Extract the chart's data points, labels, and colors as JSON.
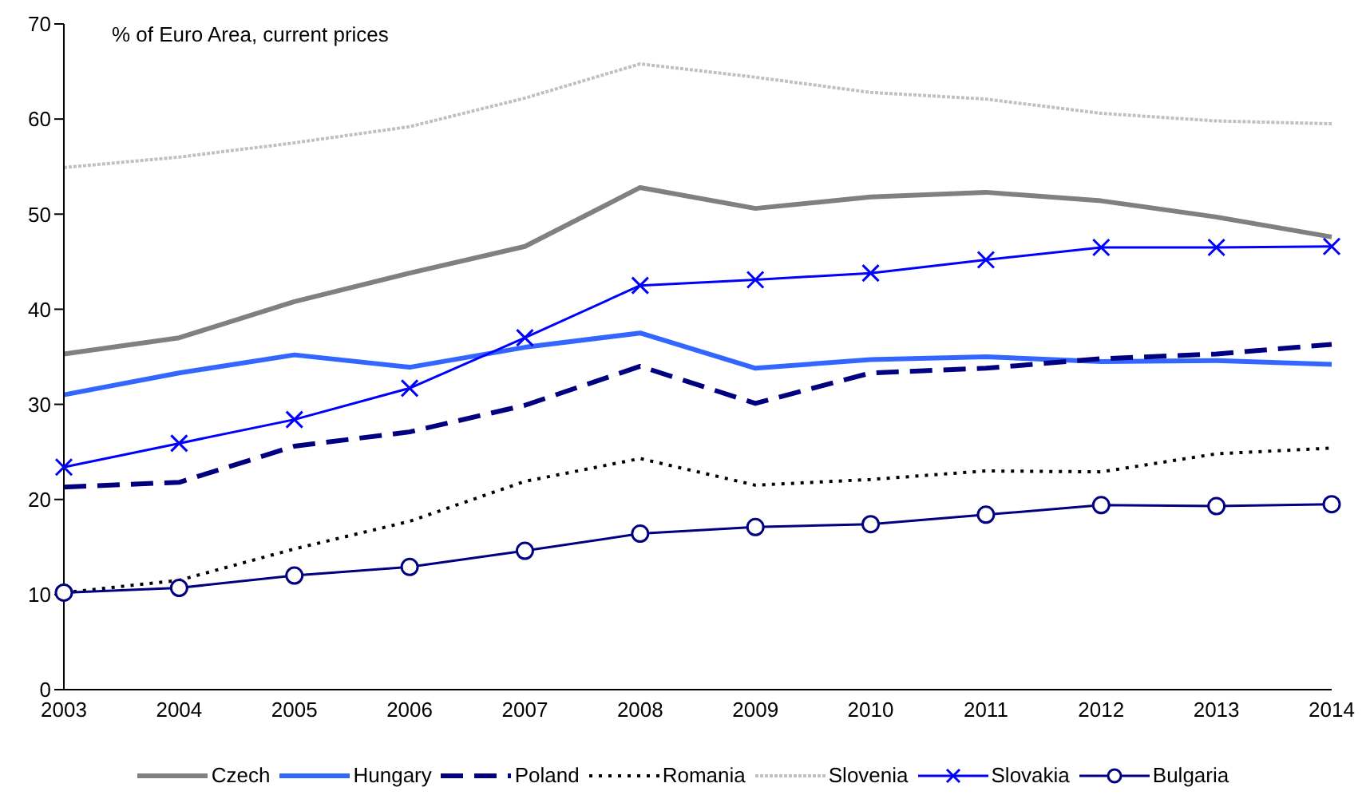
{
  "chart_data": {
    "type": "line",
    "title": "% of Euro Area, current prices",
    "categories": [
      "2003",
      "2004",
      "2005",
      "2006",
      "2007",
      "2008",
      "2009",
      "2010",
      "2011",
      "2012",
      "2013",
      "2014"
    ],
    "series": [
      {
        "name": "Czech",
        "color": "#808080",
        "line_style": "solid",
        "marker": "none",
        "values": [
          35.3,
          37,
          40.8,
          43.8,
          46.6,
          52.8,
          50.6,
          51.8,
          52.3,
          51.4,
          49.7,
          47.6
        ]
      },
      {
        "name": "Hungary",
        "color": "#3366ff",
        "line_style": "solid",
        "marker": "none",
        "values": [
          31,
          33.3,
          35.2,
          33.9,
          36,
          37.5,
          33.8,
          34.7,
          35,
          34.5,
          34.6,
          34.2
        ]
      },
      {
        "name": "Poland",
        "color": "#000080",
        "line_style": "dashed",
        "marker": "none",
        "values": [
          21.3,
          21.8,
          25.6,
          27.1,
          29.9,
          34,
          30.1,
          33.3,
          33.8,
          34.8,
          35.3,
          36.3
        ]
      },
      {
        "name": "Romania",
        "color": "#000000",
        "line_style": "dotted",
        "marker": "none",
        "values": [
          10.2,
          11.5,
          14.8,
          17.7,
          21.9,
          24.3,
          21.5,
          22.1,
          23,
          22.9,
          24.8,
          25.4
        ]
      },
      {
        "name": "Slovenia",
        "color": "#c0c0c0",
        "line_style": "dotted",
        "marker": "none",
        "values": [
          54.9,
          56,
          57.5,
          59.2,
          62.2,
          65.8,
          64.4,
          62.8,
          62.1,
          60.6,
          59.8,
          59.5
        ]
      },
      {
        "name": "Slovakia",
        "color": "#0000ff",
        "line_style": "solid",
        "marker": "cross",
        "values": [
          23.4,
          25.9,
          28.4,
          31.7,
          37,
          42.5,
          43.1,
          43.8,
          45.2,
          46.5,
          46.5,
          46.6
        ]
      },
      {
        "name": "Bulgaria",
        "color": "#000080",
        "line_style": "solid",
        "marker": "circle",
        "values": [
          10.2,
          10.7,
          12,
          12.9,
          14.6,
          16.4,
          17.1,
          17.4,
          18.4,
          19.4,
          19.3,
          19.5
        ]
      }
    ],
    "ylim": [
      0,
      70
    ],
    "yticks": [
      0,
      10,
      20,
      30,
      40,
      50,
      60,
      70
    ],
    "grid": false,
    "legend": "bottom"
  }
}
